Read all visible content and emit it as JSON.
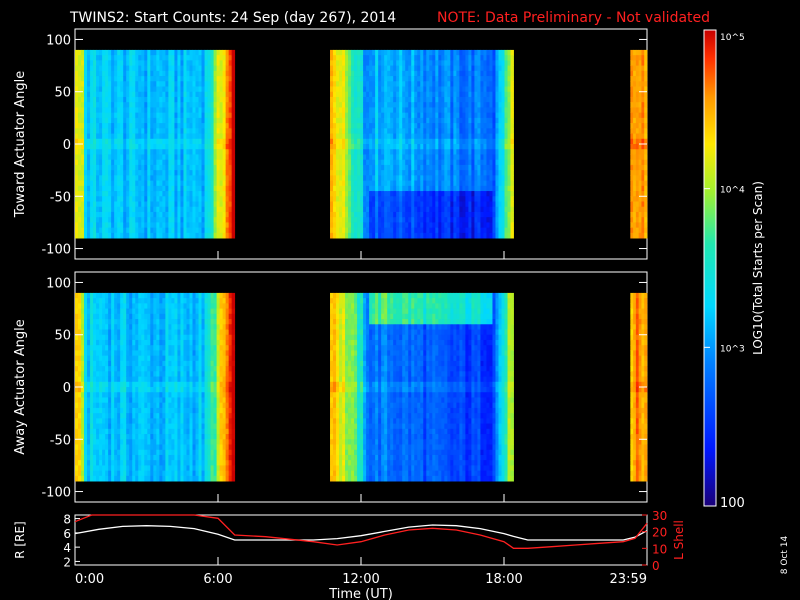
{
  "header": {
    "title": "TWINS2: Start Counts: 24 Sep (day 267), 2014",
    "note": "NOTE: Data Preliminary - Not validated",
    "note_color": "#ff2020"
  },
  "side_stamp": "8 Oct 14",
  "colorbar": {
    "label": "LOG10(Total Starts per Scan)",
    "ticks": [
      "10^5",
      "10^4",
      "10^3",
      "100"
    ],
    "range": [
      100,
      100000
    ],
    "scale": "log",
    "colormap": "rainbow"
  },
  "panels": {
    "toward": {
      "ylabel": "Toward Actuator Angle",
      "yticks": [
        "100",
        "50",
        "0",
        "-50",
        "-100"
      ]
    },
    "away": {
      "ylabel": "Away Actuator Angle",
      "yticks": [
        "100",
        "50",
        "0",
        "-50",
        "-100"
      ]
    },
    "orbit": {
      "ylabel_left": "R [RE]",
      "ylabel_right": "L Shell",
      "left_ticks": [
        "8",
        "6",
        "4",
        "2"
      ],
      "right_ticks": [
        "30",
        "20",
        "10",
        "0"
      ],
      "right_color": "#ff2020"
    }
  },
  "xaxis": {
    "label": "Time (UT)",
    "ticks": [
      "0:00",
      "6:00",
      "12:00",
      "18:00",
      "23:59"
    ]
  },
  "chart_data": [
    {
      "type": "heatmap",
      "title": "Toward Actuator Angle",
      "xlabel": "Time (UT)",
      "ylabel": "Toward Actuator Angle",
      "xlim": [
        0,
        24
      ],
      "ylim": [
        -110,
        110
      ],
      "data_ylim": [
        -90,
        90
      ],
      "color_scale": "log",
      "crange": [
        100,
        100000
      ],
      "segments": [
        {
          "start_h": 0.0,
          "end_h": 6.7
        },
        {
          "start_h": 10.7,
          "end_h": 18.4
        },
        {
          "start_h": 23.3,
          "end_h": 24.0
        }
      ]
    },
    {
      "type": "heatmap",
      "title": "Away Actuator Angle",
      "xlabel": "Time (UT)",
      "ylabel": "Away Actuator Angle",
      "xlim": [
        0,
        24
      ],
      "ylim": [
        -110,
        110
      ],
      "data_ylim": [
        -90,
        90
      ],
      "color_scale": "log",
      "crange": [
        100,
        100000
      ],
      "segments": [
        {
          "start_h": 0.0,
          "end_h": 6.7
        },
        {
          "start_h": 10.7,
          "end_h": 18.4
        },
        {
          "start_h": 23.3,
          "end_h": 24.0
        }
      ]
    },
    {
      "type": "line",
      "xlabel": "Time (UT)",
      "ylabel": "R [RE]",
      "y2label": "L Shell",
      "xlim": [
        0,
        24
      ],
      "ylim": [
        1.5,
        8.5
      ],
      "y2lim": [
        0,
        30
      ],
      "series": [
        {
          "name": "R [RE]",
          "axis": "left",
          "color": "#ffffff",
          "x": [
            0,
            1,
            2,
            3,
            4,
            5,
            6,
            6.7,
            8,
            10,
            11,
            12,
            13,
            14,
            15,
            16,
            17,
            18,
            18.4,
            19,
            20,
            21,
            22,
            23,
            23.5,
            24
          ],
          "y": [
            5.9,
            6.5,
            6.9,
            7.0,
            6.9,
            6.6,
            5.8,
            5.0,
            5.0,
            5.0,
            5.2,
            5.6,
            6.2,
            6.8,
            7.1,
            7.0,
            6.6,
            5.9,
            5.5,
            5.0,
            5.0,
            5.0,
            5.0,
            5.0,
            5.4,
            6.3
          ]
        },
        {
          "name": "L Shell",
          "axis": "right",
          "color": "#ff2020",
          "x": [
            0,
            0.7,
            5.0,
            6.0,
            6.7,
            8,
            10,
            11,
            12,
            13,
            14,
            15,
            16,
            17,
            18,
            18.4,
            19,
            20,
            21,
            22,
            23,
            23.5,
            24
          ],
          "y": [
            26,
            31,
            31,
            28,
            18,
            17,
            14,
            12,
            14,
            18,
            21,
            22,
            21,
            18,
            14,
            10,
            10,
            11,
            12,
            13,
            14,
            16,
            25
          ]
        }
      ]
    }
  ]
}
